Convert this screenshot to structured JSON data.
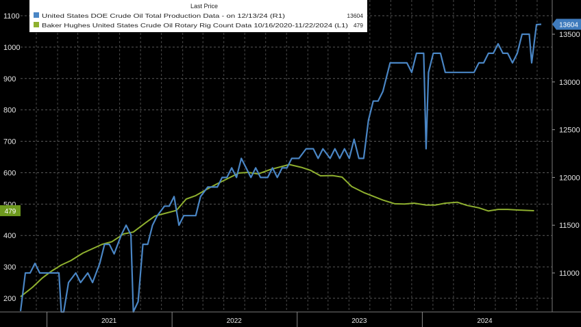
{
  "chart_data": {
    "type": "line",
    "legend": {
      "header": "Last Price",
      "placement": "top-left",
      "entries": [
        {
          "label": "United States DOE Crude Oil Total Production Data - on 12/13/24 (R1)",
          "value": "13604",
          "color": "#4a86c5"
        },
        {
          "label": "Baker Hughes United States Crude Oil Rotary Rig Count Data 10/16/2020-11/22/2024 (L1)",
          "value": "479",
          "color": "#8fb02f"
        }
      ]
    },
    "x_axis": {
      "range": [
        "2020-10-16",
        "2024-12-13"
      ],
      "year_labels": [
        {
          "label": "2021",
          "date": "2021-07-01"
        },
        {
          "label": "2022",
          "date": "2022-07-01"
        },
        {
          "label": "2023",
          "date": "2023-07-01"
        },
        {
          "label": "2024",
          "date": "2024-07-01"
        }
      ]
    },
    "left_axis": {
      "ylim": [
        180,
        1120
      ],
      "ticks": [
        200,
        300,
        400,
        500,
        600,
        700,
        800,
        900,
        1000,
        1100
      ]
    },
    "right_axis": {
      "ylim": [
        10650,
        13800
      ],
      "ticks": [
        11000,
        11500,
        12000,
        12500,
        13000,
        13500
      ]
    },
    "grid": true,
    "last_value_tags": [
      {
        "text": "479",
        "axis": "left",
        "value": 479,
        "color": "#6e9a1e"
      },
      {
        "text": "13604",
        "axis": "right",
        "value": 13604,
        "color": "#3f7bbd"
      }
    ],
    "series": [
      {
        "name": "Baker Hughes United States Crude Oil Rotary Rig Count Data 10/16/2020-11/22/2024",
        "axis": "left",
        "color": "#8fb02f",
        "points": [
          [
            "2020-10-16",
            205
          ],
          [
            "2020-11-20",
            235
          ],
          [
            "2020-12-18",
            264
          ],
          [
            "2021-01-15",
            287
          ],
          [
            "2021-02-12",
            306
          ],
          [
            "2021-03-12",
            320
          ],
          [
            "2021-04-16",
            344
          ],
          [
            "2021-05-14",
            358
          ],
          [
            "2021-06-11",
            372
          ],
          [
            "2021-07-09",
            380
          ],
          [
            "2021-08-13",
            405
          ],
          [
            "2021-09-10",
            411
          ],
          [
            "2021-10-15",
            440
          ],
          [
            "2021-11-12",
            462
          ],
          [
            "2021-12-10",
            470
          ],
          [
            "2022-01-14",
            480
          ],
          [
            "2022-02-11",
            516
          ],
          [
            "2022-03-11",
            527
          ],
          [
            "2022-04-14",
            548
          ],
          [
            "2022-05-13",
            565
          ],
          [
            "2022-06-10",
            580
          ],
          [
            "2022-07-15",
            599
          ],
          [
            "2022-08-12",
            601
          ],
          [
            "2022-09-09",
            596
          ],
          [
            "2022-10-14",
            610
          ],
          [
            "2022-11-11",
            618
          ],
          [
            "2022-12-09",
            626
          ],
          [
            "2023-01-13",
            617
          ],
          [
            "2023-02-10",
            607
          ],
          [
            "2023-03-10",
            590
          ],
          [
            "2023-04-14",
            591
          ],
          [
            "2023-05-12",
            586
          ],
          [
            "2023-06-09",
            556
          ],
          [
            "2023-07-14",
            537
          ],
          [
            "2023-08-11",
            525
          ],
          [
            "2023-09-08",
            513
          ],
          [
            "2023-10-13",
            501
          ],
          [
            "2023-11-10",
            500
          ],
          [
            "2023-12-08",
            503
          ],
          [
            "2024-01-12",
            497
          ],
          [
            "2024-02-09",
            497
          ],
          [
            "2024-03-08",
            503
          ],
          [
            "2024-04-12",
            506
          ],
          [
            "2024-05-10",
            496
          ],
          [
            "2024-06-14",
            488
          ],
          [
            "2024-07-12",
            478
          ],
          [
            "2024-08-09",
            483
          ],
          [
            "2024-09-06",
            483
          ],
          [
            "2024-10-11",
            481
          ],
          [
            "2024-11-22",
            479
          ]
        ]
      },
      {
        "name": "United States DOE Crude Oil Total Production Data - on 12/13/24",
        "axis": "right",
        "color": "#4a86c5",
        "points": [
          [
            "2020-10-16",
            10600
          ],
          [
            "2020-10-30",
            11000
          ],
          [
            "2020-11-13",
            11000
          ],
          [
            "2020-11-27",
            11100
          ],
          [
            "2020-12-11",
            11000
          ],
          [
            "2021-01-08",
            11000
          ],
          [
            "2021-02-05",
            11000
          ],
          [
            "2021-02-12",
            9700
          ],
          [
            "2021-02-19",
            10000
          ],
          [
            "2021-03-05",
            10900
          ],
          [
            "2021-03-26",
            11000
          ],
          [
            "2021-04-09",
            10900
          ],
          [
            "2021-04-30",
            11000
          ],
          [
            "2021-05-14",
            10900
          ],
          [
            "2021-06-04",
            11100
          ],
          [
            "2021-06-18",
            11300
          ],
          [
            "2021-07-02",
            11300
          ],
          [
            "2021-07-16",
            11200
          ],
          [
            "2021-08-06",
            11400
          ],
          [
            "2021-08-20",
            11500
          ],
          [
            "2021-09-03",
            11400
          ],
          [
            "2021-09-10",
            10000
          ],
          [
            "2021-09-24",
            10700
          ],
          [
            "2021-10-08",
            11300
          ],
          [
            "2021-10-22",
            11300
          ],
          [
            "2021-11-05",
            11500
          ],
          [
            "2021-11-19",
            11600
          ],
          [
            "2021-12-10",
            11700
          ],
          [
            "2021-12-24",
            11700
          ],
          [
            "2022-01-07",
            11800
          ],
          [
            "2022-01-21",
            11500
          ],
          [
            "2022-02-04",
            11600
          ],
          [
            "2022-02-25",
            11600
          ],
          [
            "2022-03-11",
            11600
          ],
          [
            "2022-03-25",
            11800
          ],
          [
            "2022-04-15",
            11900
          ],
          [
            "2022-04-29",
            11900
          ],
          [
            "2022-05-13",
            11900
          ],
          [
            "2022-05-27",
            12000
          ],
          [
            "2022-06-10",
            12000
          ],
          [
            "2022-06-24",
            12100
          ],
          [
            "2022-07-08",
            12000
          ],
          [
            "2022-07-22",
            12200
          ],
          [
            "2022-08-05",
            12100
          ],
          [
            "2022-08-19",
            12000
          ],
          [
            "2022-09-02",
            12100
          ],
          [
            "2022-09-16",
            12000
          ],
          [
            "2022-10-07",
            12000
          ],
          [
            "2022-10-21",
            12100
          ],
          [
            "2022-11-04",
            12000
          ],
          [
            "2022-11-18",
            12100
          ],
          [
            "2022-12-02",
            12100
          ],
          [
            "2022-12-16",
            12200
          ],
          [
            "2023-01-06",
            12200
          ],
          [
            "2023-01-27",
            12300
          ],
          [
            "2023-02-17",
            12300
          ],
          [
            "2023-03-03",
            12200
          ],
          [
            "2023-03-17",
            12300
          ],
          [
            "2023-04-07",
            12200
          ],
          [
            "2023-04-21",
            12300
          ],
          [
            "2023-05-05",
            12200
          ],
          [
            "2023-05-19",
            12300
          ],
          [
            "2023-06-02",
            12200
          ],
          [
            "2023-06-16",
            12400
          ],
          [
            "2023-06-30",
            12200
          ],
          [
            "2023-07-14",
            12200
          ],
          [
            "2023-07-28",
            12600
          ],
          [
            "2023-08-11",
            12800
          ],
          [
            "2023-08-25",
            12800
          ],
          [
            "2023-09-08",
            12900
          ],
          [
            "2023-09-29",
            13200
          ],
          [
            "2023-10-20",
            13200
          ],
          [
            "2023-11-03",
            13200
          ],
          [
            "2023-11-17",
            13200
          ],
          [
            "2023-12-01",
            13100
          ],
          [
            "2023-12-15",
            13300
          ],
          [
            "2024-01-05",
            13300
          ],
          [
            "2024-01-12",
            12300
          ],
          [
            "2024-01-19",
            13100
          ],
          [
            "2024-02-02",
            13300
          ],
          [
            "2024-02-23",
            13300
          ],
          [
            "2024-03-08",
            13100
          ],
          [
            "2024-04-05",
            13100
          ],
          [
            "2024-05-03",
            13100
          ],
          [
            "2024-05-31",
            13100
          ],
          [
            "2024-06-14",
            13200
          ],
          [
            "2024-06-28",
            13200
          ],
          [
            "2024-07-12",
            13300
          ],
          [
            "2024-07-26",
            13300
          ],
          [
            "2024-08-09",
            13400
          ],
          [
            "2024-08-23",
            13300
          ],
          [
            "2024-09-06",
            13300
          ],
          [
            "2024-09-20",
            13200
          ],
          [
            "2024-10-04",
            13300
          ],
          [
            "2024-10-18",
            13500
          ],
          [
            "2024-11-08",
            13500
          ],
          [
            "2024-11-15",
            13200
          ],
          [
            "2024-11-22",
            13400
          ],
          [
            "2024-11-29",
            13600
          ],
          [
            "2024-12-13",
            13604
          ]
        ]
      }
    ]
  }
}
